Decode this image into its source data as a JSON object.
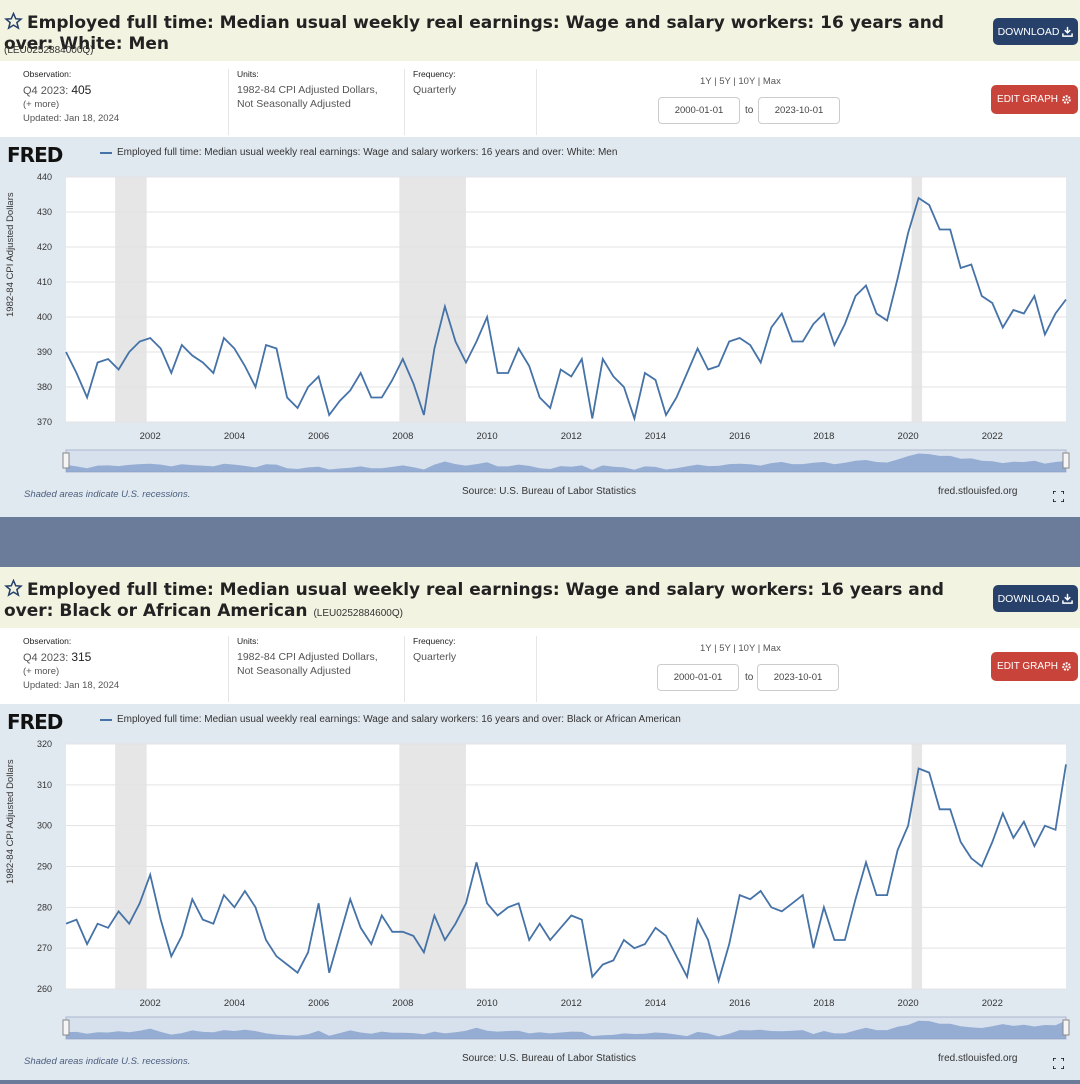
{
  "colors": {
    "accent": "#4572a7",
    "download": "#27416b",
    "edit": "#c8443a",
    "recession": "#e6e6e6"
  },
  "panels": [
    {
      "title": "Employed full time: Median usual weekly real earnings: Wage and salary workers: 16 years and over: White: Men",
      "series_id": "(LEU0252884000Q)",
      "download_label": "DOWNLOAD",
      "observation_label": "Observation:",
      "observation_period": "Q4 2023:",
      "observation_value": "405",
      "more_label": "(+ more)",
      "updated": "Updated: Jan 18, 2024",
      "units_label": "Units:",
      "units_line1": "1982-84 CPI Adjusted Dollars,",
      "units_line2": "Not Seasonally Adjusted",
      "frequency_label": "Frequency:",
      "frequency": "Quarterly",
      "range_links": "1Y | 5Y | 10Y | Max",
      "date_from": "2000-01-01",
      "date_to": "2023-10-01",
      "to_label": "to",
      "edit_label": "EDIT GRAPH",
      "fred_logo": "FRED",
      "legend": "Employed full time: Median usual weekly real earnings: Wage and salary workers: 16 years and over: White: Men",
      "ylabel": "1982-84 CPI Adjusted Dollars",
      "footer_left": "Shaded areas indicate U.S. recessions.",
      "footer_mid": "Source: U.S. Bureau of Labor Statistics",
      "footer_right": "fred.stlouisfed.org"
    },
    {
      "title": "Employed full time: Median usual weekly real earnings: Wage and salary workers: 16 years and over: Black or African American",
      "series_id": "(LEU0252884600Q)",
      "download_label": "DOWNLOAD",
      "observation_label": "Observation:",
      "observation_period": "Q4 2023:",
      "observation_value": "315",
      "more_label": "(+ more)",
      "updated": "Updated: Jan 18, 2024",
      "units_label": "Units:",
      "units_line1": "1982-84 CPI Adjusted Dollars,",
      "units_line2": "Not Seasonally Adjusted",
      "frequency_label": "Frequency:",
      "frequency": "Quarterly",
      "range_links": "1Y | 5Y | 10Y | Max",
      "date_from": "2000-01-01",
      "date_to": "2023-10-01",
      "to_label": "to",
      "edit_label": "EDIT GRAPH",
      "fred_logo": "FRED",
      "legend": "Employed full time: Median usual weekly real earnings: Wage and salary workers: 16 years and over: Black or African American",
      "ylabel": "1982-84 CPI Adjusted Dollars",
      "footer_left": "Shaded areas indicate U.S. recessions.",
      "footer_mid": "Source: U.S. Bureau of Labor Statistics",
      "footer_right": "fred.stlouisfed.org"
    }
  ],
  "chart_data": [
    {
      "type": "line",
      "ylim": [
        370,
        440
      ],
      "yticks": [
        "370",
        "380",
        "390",
        "400",
        "410",
        "420",
        "430",
        "440"
      ],
      "xticks": [
        "2002",
        "2004",
        "2006",
        "2008",
        "2010",
        "2012",
        "2014",
        "2016",
        "2018",
        "2020",
        "2022"
      ],
      "recessions": [
        [
          "2001-03",
          "2001-11"
        ],
        [
          "2007-12",
          "2009-06"
        ],
        [
          "2020-02",
          "2020-04"
        ]
      ],
      "x_start": "2000-01-01",
      "step": "quarterly",
      "values": [
        390,
        384,
        377,
        387,
        388,
        385,
        390,
        393,
        394,
        391,
        384,
        392,
        389,
        387,
        384,
        394,
        391,
        386,
        380,
        392,
        391,
        377,
        374,
        380,
        383,
        372,
        376,
        379,
        384,
        377,
        377,
        382,
        388,
        381,
        372,
        391,
        403,
        393,
        387,
        393,
        400,
        384,
        384,
        391,
        386,
        377,
        374,
        385,
        383,
        388,
        371,
        388,
        383,
        380,
        371,
        384,
        382,
        372,
        377,
        384,
        391,
        385,
        386,
        393,
        394,
        392,
        387,
        397,
        401,
        393,
        393,
        398,
        401,
        392,
        398,
        406,
        409,
        401,
        399,
        411,
        424,
        434,
        432,
        425,
        425,
        414,
        415,
        406,
        404,
        397,
        402,
        401,
        406,
        395,
        401,
        405
      ]
    },
    {
      "type": "line",
      "ylim": [
        260,
        320
      ],
      "yticks": [
        "260",
        "270",
        "280",
        "290",
        "300",
        "310",
        "320"
      ],
      "xticks": [
        "2002",
        "2004",
        "2006",
        "2008",
        "2010",
        "2012",
        "2014",
        "2016",
        "2018",
        "2020",
        "2022"
      ],
      "recessions": [
        [
          "2001-03",
          "2001-11"
        ],
        [
          "2007-12",
          "2009-06"
        ],
        [
          "2020-02",
          "2020-04"
        ]
      ],
      "x_start": "2000-01-01",
      "step": "quarterly",
      "values": [
        276,
        277,
        271,
        276,
        275,
        279,
        276,
        281,
        288,
        277,
        268,
        273,
        282,
        277,
        276,
        283,
        280,
        284,
        280,
        272,
        268,
        266,
        264,
        269,
        281,
        264,
        273,
        282,
        275,
        271,
        278,
        274,
        274,
        273,
        269,
        278,
        272,
        276,
        281,
        291,
        281,
        278,
        280,
        281,
        272,
        276,
        272,
        275,
        278,
        277,
        263,
        266,
        267,
        272,
        270,
        271,
        275,
        273,
        268,
        263,
        277,
        272,
        262,
        271,
        283,
        282,
        284,
        280,
        279,
        281,
        283,
        270,
        280,
        272,
        272,
        282,
        291,
        283,
        283,
        294,
        300,
        314,
        313,
        304,
        304,
        296,
        292,
        290,
        296,
        303,
        297,
        301,
        295,
        300,
        299,
        315
      ]
    }
  ]
}
